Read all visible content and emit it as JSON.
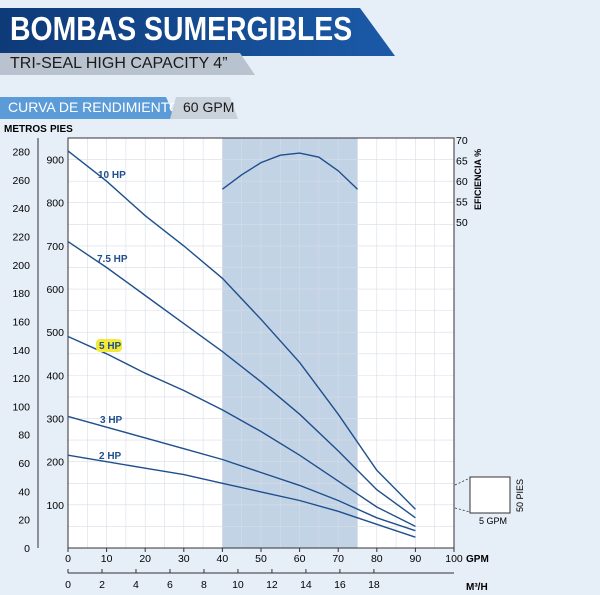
{
  "header": {
    "title": "BOMBAS SUMERGIBLES",
    "subtitle": "TRI-SEAL HIGH CAPACITY 4”",
    "curve_label": "CURVA DE RENDIMIENTO",
    "gpm_tag": "60 GPM"
  },
  "colors": {
    "curve": "#1f4f8c",
    "band": "#c3d3e6",
    "banner": "#1b5aa8"
  },
  "chart_data": {
    "type": "line",
    "left_axis_label_metros": "METROS",
    "left_axis_label_pies": "PIES",
    "right_axis_label": "EFICIENCIA %",
    "bottom_axis_label_gpm": "GPM",
    "bottom_axis_label_m3h": "M³/H",
    "xlim": [
      0,
      100
    ],
    "ylim_pies": [
      0,
      950
    ],
    "metros_ticks": [
      "0",
      "20",
      "40",
      "60",
      "80",
      "100",
      "120",
      "140",
      "160",
      "180",
      "200",
      "220",
      "240",
      "260",
      "280"
    ],
    "pies_ticks": [
      "100",
      "200",
      "300",
      "400",
      "500",
      "600",
      "700",
      "800",
      "900"
    ],
    "gpm_ticks": [
      "0",
      "10",
      "20",
      "30",
      "40",
      "50",
      "60",
      "70",
      "80",
      "90",
      "100"
    ],
    "m3h_ticks": [
      "0",
      "2",
      "4",
      "6",
      "8",
      "10",
      "12",
      "14",
      "16",
      "18"
    ],
    "efficiency_ticks": [
      "50",
      "55",
      "60",
      "65",
      "70"
    ],
    "band_gpm": [
      40,
      75
    ],
    "series": [
      {
        "name": "10 HP",
        "x": [
          0,
          10,
          20,
          30,
          40,
          50,
          60,
          70,
          80,
          90
        ],
        "y": [
          920,
          850,
          770,
          700,
          625,
          530,
          430,
          310,
          180,
          90
        ]
      },
      {
        "name": "7.5 HP",
        "x": [
          0,
          10,
          20,
          30,
          40,
          50,
          60,
          70,
          80,
          90
        ],
        "y": [
          710,
          650,
          585,
          520,
          455,
          385,
          310,
          225,
          135,
          70
        ]
      },
      {
        "name": "5 HP",
        "x": [
          0,
          10,
          20,
          30,
          40,
          50,
          60,
          70,
          80,
          90
        ],
        "y": [
          490,
          450,
          405,
          365,
          320,
          270,
          215,
          155,
          95,
          50
        ]
      },
      {
        "name": "3 HP",
        "x": [
          0,
          10,
          20,
          30,
          40,
          50,
          60,
          70,
          80,
          90
        ],
        "y": [
          305,
          280,
          255,
          230,
          205,
          175,
          145,
          110,
          70,
          40
        ]
      },
      {
        "name": "2 HP",
        "x": [
          0,
          10,
          20,
          30,
          40,
          50,
          60,
          70,
          80,
          90
        ],
        "y": [
          215,
          200,
          185,
          170,
          150,
          130,
          110,
          85,
          55,
          25
        ]
      }
    ],
    "efficiency": {
      "x": [
        40,
        45,
        50,
        55,
        60,
        65,
        70,
        75
      ],
      "y": [
        58,
        61.5,
        64.5,
        66.3,
        66.8,
        65.8,
        62.5,
        58
      ]
    },
    "scale_box": {
      "width_label": "5 GPM",
      "height_label": "50 PIES"
    }
  }
}
